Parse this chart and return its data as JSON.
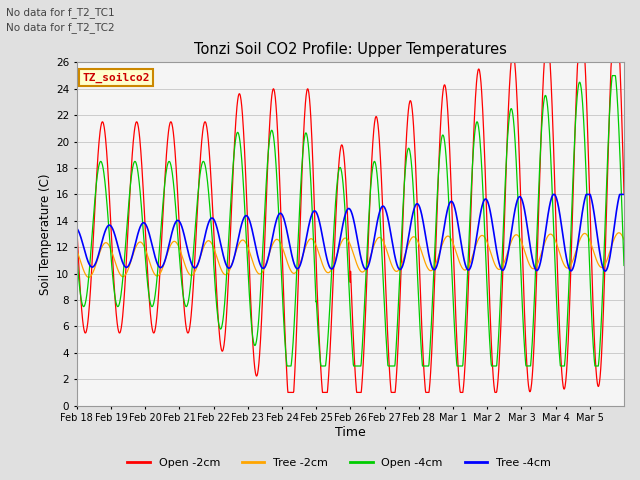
{
  "title": "Tonzi Soil CO2 Profile: Upper Temperatures",
  "xlabel": "Time",
  "ylabel": "Soil Temperature (C)",
  "ylim": [
    0,
    26
  ],
  "yticks": [
    0,
    2,
    4,
    6,
    8,
    10,
    12,
    14,
    16,
    18,
    20,
    22,
    24,
    26
  ],
  "legend_labels": [
    "Open -2cm",
    "Tree -2cm",
    "Open -4cm",
    "Tree -4cm"
  ],
  "legend_colors": [
    "#ff0000",
    "#ffa500",
    "#00cc00",
    "#0000ff"
  ],
  "annotations": [
    "No data for f_T2_TC1",
    "No data for f_T2_TC2"
  ],
  "dataset_label": "TZ_soilco2",
  "fig_bg_color": "#e0e0e0",
  "plot_bg_color": "#f5f5f5",
  "grid_color": "#d0d0d0",
  "x_tick_labels": [
    "Feb 18",
    "Feb 19",
    "Feb 20",
    "Feb 21",
    "Feb 22",
    "Feb 23",
    "Feb 24",
    "Feb 25",
    "Feb 26",
    "Feb 27",
    "Feb 28",
    "Mar 1",
    "Mar 2",
    "Mar 3",
    "Mar 4",
    "Mar 5"
  ]
}
